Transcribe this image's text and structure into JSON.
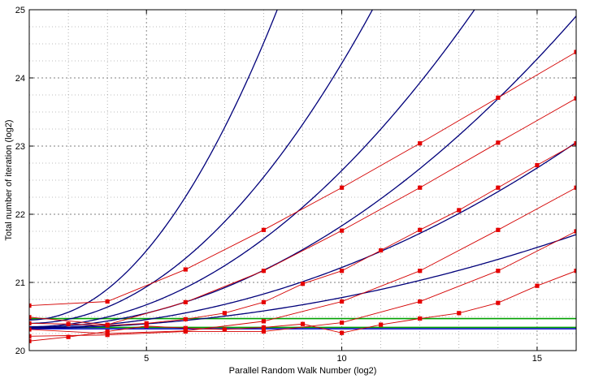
{
  "chart_data": {
    "type": "line",
    "title": "",
    "xlabel": "Parallel Random Walk Number (log2)",
    "ylabel": "Total number of iteration (log2)",
    "xlim": [
      2,
      16
    ],
    "ylim": [
      20,
      25
    ],
    "xticks": [
      5,
      10,
      15
    ],
    "yticks": [
      20,
      21,
      22,
      23,
      24,
      25
    ],
    "xtick_labels": [
      "5",
      "10",
      "15"
    ],
    "ytick_labels": [
      "20",
      "21",
      "22",
      "23",
      "24",
      "25"
    ],
    "grid": true,
    "minor_grid": true,
    "legend": "none",
    "colors": {
      "theory": "#00007a",
      "measured": "#d40000",
      "marker": "#e60000",
      "reference_green": "#00a000",
      "reference_blue": "#0000c8",
      "grid": "#7f7f7f"
    },
    "theory_curves": [
      {
        "base": 20.45,
        "x0": 2,
        "k": 0.1129
      },
      {
        "base": 20.4,
        "x0": 2,
        "k": 0.0596
      },
      {
        "base": 20.35,
        "x0": 2,
        "k": 0.0358
      },
      {
        "base": 20.34,
        "x0": 2,
        "k": 0.0233
      },
      {
        "base": 20.33,
        "x0": 2,
        "k": 0.0139
      },
      {
        "base": 20.33,
        "x0": 2,
        "k": 0.007
      }
    ],
    "series": [
      {
        "x": [
          2,
          4,
          6,
          8,
          10,
          12,
          14,
          16
        ],
        "y": [
          20.66,
          20.72,
          21.19,
          21.77,
          22.39,
          23.04,
          23.71,
          24.38
        ]
      },
      {
        "x": [
          2,
          4,
          6,
          8,
          10,
          12,
          14,
          16
        ],
        "y": [
          20.49,
          20.38,
          20.71,
          21.17,
          21.76,
          22.39,
          23.05,
          23.7
        ]
      },
      {
        "x": [
          2,
          3,
          4,
          5,
          6,
          7,
          8,
          9,
          10,
          11,
          12,
          13,
          14,
          15,
          16
        ],
        "y": [
          20.4,
          20.39,
          20.37,
          20.4,
          20.46,
          20.55,
          20.71,
          20.98,
          21.17,
          21.47,
          21.77,
          22.06,
          22.39,
          22.72,
          23.04
        ]
      },
      {
        "x": [
          2,
          4,
          6,
          8,
          10,
          12,
          14,
          16
        ],
        "y": [
          20.31,
          20.25,
          20.29,
          20.43,
          20.72,
          21.17,
          21.77,
          22.39
        ]
      },
      {
        "x": [
          2,
          4,
          6,
          8,
          10,
          12,
          14,
          16
        ],
        "y": [
          20.21,
          20.23,
          20.28,
          20.28,
          20.41,
          20.72,
          21.17,
          21.75
        ]
      },
      {
        "x": [
          2,
          3,
          4,
          5,
          6,
          7,
          8,
          9,
          10,
          11,
          12,
          13,
          14,
          15,
          16
        ],
        "y": [
          20.14,
          20.2,
          20.28,
          20.36,
          20.33,
          20.31,
          20.34,
          20.39,
          20.26,
          20.38,
          20.47,
          20.55,
          20.7,
          20.95,
          21.17
        ]
      }
    ],
    "reference_lines": [
      {
        "y": 20.47,
        "color": "reference_green"
      },
      {
        "y": 20.34,
        "color": "reference_green"
      },
      {
        "y": 20.32,
        "color": "reference_blue"
      }
    ]
  }
}
